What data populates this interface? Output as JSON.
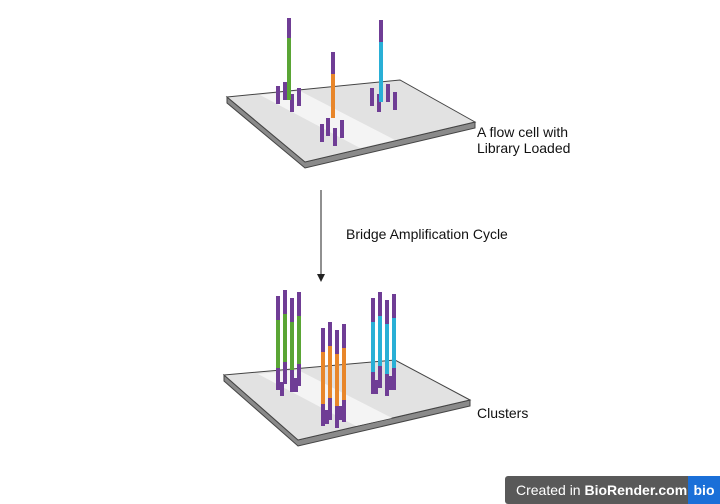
{
  "labels": {
    "flow_cell": [
      "A flow cell with",
      "Library Loaded"
    ],
    "cycle": "Bridge Amplification Cycle",
    "clusters": "Clusters"
  },
  "badge": {
    "prefix": "Created in",
    "brand": "BioRender.com",
    "logo": "bio"
  }
}
